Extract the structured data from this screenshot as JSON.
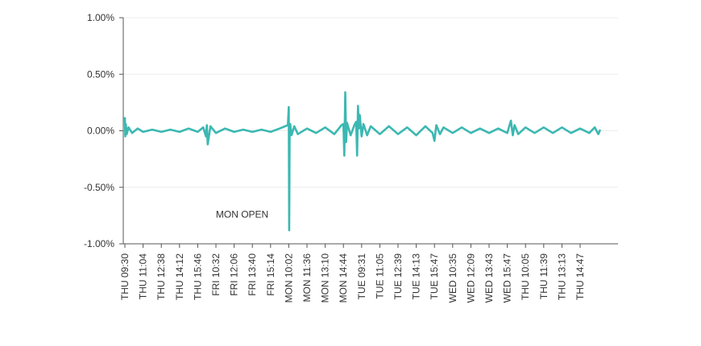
{
  "chart_data": {
    "type": "line",
    "title": "",
    "xlabel": "",
    "ylabel": "",
    "ylim": [
      -1.0,
      1.0
    ],
    "y_ticks": [
      {
        "value": 1.0,
        "label": "1.00%"
      },
      {
        "value": 0.5,
        "label": "0.50%"
      },
      {
        "value": 0.0,
        "label": "0.00%"
      },
      {
        "value": -0.5,
        "label": "-0.50%"
      },
      {
        "value": -1.0,
        "label": "-1.00%"
      }
    ],
    "x_ticks": [
      "THU  09:30",
      "THU  11:04",
      "THU  12:38",
      "THU  14:12",
      "THU  15:46",
      "FRI  10:32",
      "FRI  12:06",
      "FRI  13:40",
      "FRI  15:14",
      "MON  10:02",
      "MON  11:36",
      "MON  13:10",
      "MON  14:44",
      "TUE  09:31",
      "TUE  11:05",
      "TUE  12:39",
      "TUE  14:13",
      "TUE  15:47",
      "WED  10:35",
      "WED  12:09",
      "WED  13:43",
      "WED  15:47",
      "THU  10:05",
      "THU  11:39",
      "THU  13:13",
      "THU  14:47"
    ],
    "grid": true,
    "line_color": "#3bb8b2",
    "annotations": [
      {
        "text": "MON OPEN",
        "x_tick_position": 8.55,
        "y": -0.74
      }
    ],
    "series": [
      {
        "x_tick_position": [
          0.0,
          0.02,
          0.05,
          0.1,
          0.2,
          0.4,
          0.7,
          1.0,
          1.5,
          2.0,
          2.5,
          3.0,
          3.5,
          4.0,
          4.3,
          4.45,
          4.5,
          4.55,
          4.7,
          5.0,
          5.5,
          6.0,
          6.5,
          7.0,
          7.5,
          8.0,
          8.5,
          8.95,
          9.0,
          9.02,
          9.05,
          9.08,
          9.15,
          9.3,
          9.5,
          10.0,
          10.5,
          11.0,
          11.5,
          11.9,
          12.0,
          12.05,
          12.1,
          12.15,
          12.2,
          12.4,
          12.6,
          12.7,
          12.75,
          12.8,
          12.85,
          12.9,
          13.0,
          13.1,
          13.3,
          13.5,
          14.0,
          14.5,
          15.0,
          15.5,
          16.0,
          16.5,
          16.9,
          17.0,
          17.1,
          17.3,
          17.5,
          18.0,
          18.5,
          19.0,
          19.5,
          20.0,
          20.5,
          21.0,
          21.2,
          21.3,
          21.4,
          21.6,
          22.0,
          22.5,
          23.0,
          23.5,
          24.0,
          24.5,
          25.0,
          25.5,
          25.8,
          26.0,
          26.1
        ],
        "y": [
          0.12,
          -0.05,
          0.06,
          -0.03,
          0.03,
          -0.02,
          0.02,
          -0.01,
          0.01,
          -0.01,
          0.01,
          -0.01,
          0.02,
          -0.01,
          0.03,
          -0.05,
          0.05,
          -0.12,
          0.04,
          -0.02,
          0.02,
          -0.01,
          0.01,
          -0.01,
          0.01,
          -0.01,
          0.02,
          0.05,
          0.21,
          -0.88,
          0.03,
          0.06,
          -0.04,
          0.04,
          -0.03,
          0.02,
          -0.02,
          0.03,
          -0.03,
          0.05,
          0.06,
          -0.22,
          0.34,
          -0.1,
          0.07,
          -0.04,
          0.05,
          0.08,
          -0.22,
          0.22,
          0.02,
          0.14,
          -0.05,
          0.06,
          -0.04,
          0.04,
          -0.03,
          0.04,
          -0.03,
          0.03,
          -0.04,
          0.04,
          -0.02,
          -0.09,
          0.05,
          -0.03,
          0.03,
          -0.02,
          0.03,
          -0.02,
          0.02,
          -0.02,
          0.02,
          -0.02,
          0.09,
          -0.04,
          0.05,
          -0.03,
          0.03,
          -0.02,
          0.03,
          -0.02,
          0.03,
          -0.02,
          0.02,
          -0.02,
          0.03,
          -0.03,
          0.01
        ]
      }
    ]
  }
}
